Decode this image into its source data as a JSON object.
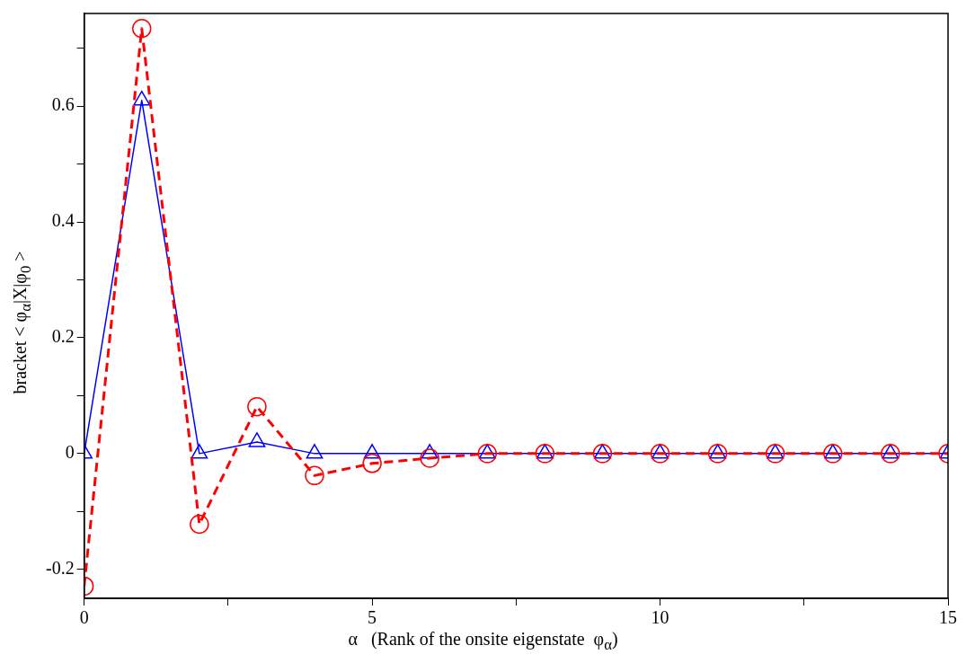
{
  "chart_data": {
    "type": "line",
    "xlabel": "α   (Rank of the onsite eigenstate  φ$_{α}$)",
    "ylabel": "bracket < φ$_{α}$|X|φ$_{0}$ >",
    "x": [
      0,
      1,
      2,
      3,
      4,
      5,
      6,
      7,
      8,
      9,
      10,
      11,
      12,
      13,
      14,
      15
    ],
    "series": [
      {
        "color": "#ff0000",
        "marker": "circle",
        "line_style": "dashed",
        "values": [
          -0.229,
          0.734,
          -0.122,
          0.081,
          -0.038,
          -0.017,
          -0.008,
          0,
          0,
          0,
          0,
          0,
          0,
          0,
          0,
          0
        ]
      },
      {
        "color": "#0000ff",
        "marker": "triangle",
        "line_style": "solid",
        "values": [
          0,
          0.61,
          0,
          0.02,
          0,
          0,
          0,
          0,
          0,
          0,
          0,
          0,
          0,
          0,
          0,
          0
        ]
      }
    ],
    "xlim": [
      0,
      15
    ],
    "xticks": [
      0,
      {
        "value": 2.5,
        "label": null
      },
      5,
      {
        "value": 7.5,
        "label": null
      },
      10,
      {
        "value": 12.5,
        "label": null
      },
      15
    ],
    "ylim": [
      -0.25,
      0.76
    ],
    "yticks": [
      {
        "value": -0.2,
        "label": "-0.2"
      },
      {
        "value": -0.1,
        "label": null
      },
      0,
      {
        "value": 0.1,
        "label": null
      },
      0.2,
      {
        "value": 0.3,
        "label": null
      },
      0.4,
      {
        "value": 0.5,
        "label": null
      },
      0.6,
      {
        "value": 0.7,
        "label": null
      }
    ],
    "grid": false,
    "legend": false
  }
}
